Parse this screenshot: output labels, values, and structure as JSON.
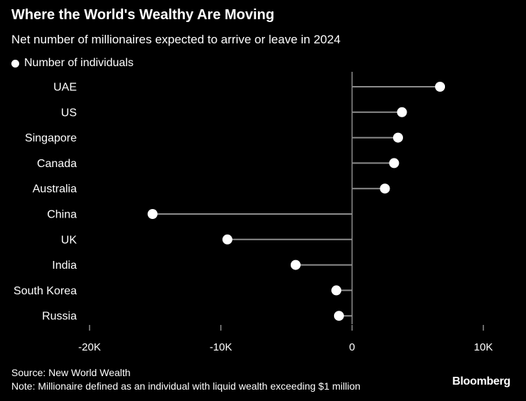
{
  "title": "Where the World's Wealthy Are Moving",
  "subtitle": "Net number of millionaires expected to arrive or leave in 2024",
  "legend": {
    "label": "Number of individuals"
  },
  "footer": {
    "source": "Source: New World Wealth",
    "note": "Note: Millionaire defined as an individual with liquid wealth exceeding $1 million"
  },
  "brand": "Bloomberg",
  "colors": {
    "background": "#000000",
    "text": "#ffffff",
    "stem": "#8c8c8c",
    "axis": "#8c8c8c",
    "dot": "#ffffff"
  },
  "chart_data": {
    "type": "dot-plot",
    "orientation": "horizontal",
    "categories": [
      "UAE",
      "US",
      "Singapore",
      "Canada",
      "Australia",
      "China",
      "UK",
      "India",
      "South Korea",
      "Russia"
    ],
    "series": [
      {
        "name": "Number of individuals",
        "values": [
          6700,
          3800,
          3500,
          3200,
          2500,
          -15200,
          -9500,
          -4300,
          -1200,
          -1000
        ]
      }
    ],
    "xlim": [
      -20000,
      10000
    ],
    "xticks": [
      -20000,
      -10000,
      0,
      10000
    ],
    "xtick_labels": [
      "-20K",
      "-10K",
      "0",
      "10K"
    ],
    "grid": false,
    "legend_position": "top-left"
  }
}
